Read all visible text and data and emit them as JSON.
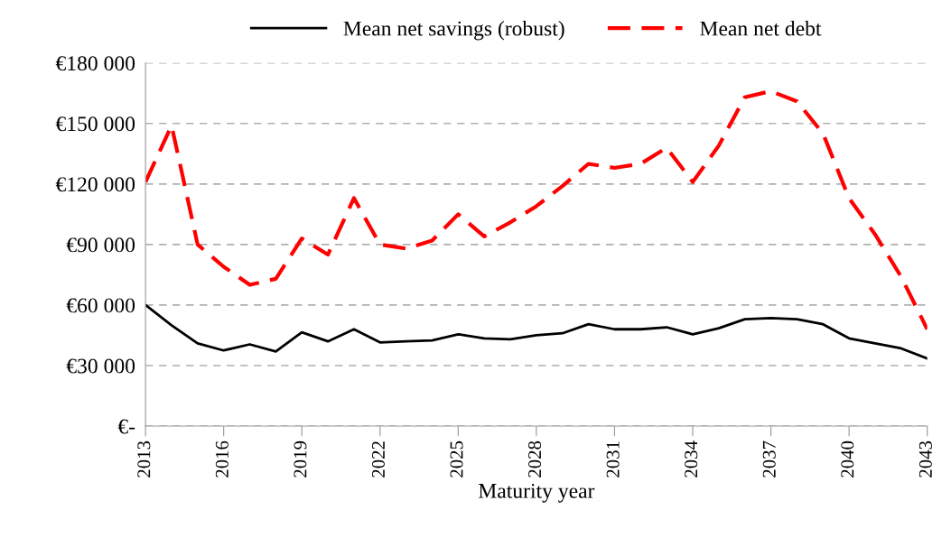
{
  "chart_data": {
    "type": "line",
    "xlabel": "Maturity year",
    "x": [
      2013,
      2014,
      2015,
      2016,
      2017,
      2018,
      2019,
      2020,
      2021,
      2022,
      2023,
      2024,
      2025,
      2026,
      2027,
      2028,
      2029,
      2030,
      2031,
      2032,
      2033,
      2034,
      2035,
      2036,
      2037,
      2038,
      2039,
      2040,
      2041,
      2042,
      2043
    ],
    "series": [
      {
        "name": "Mean net savings (robust)",
        "color": "#000000",
        "line_style": "solid",
        "values": [
          60000,
          50000,
          41000,
          37500,
          40500,
          37000,
          46500,
          42000,
          48000,
          41500,
          42000,
          42500,
          45500,
          43500,
          43000,
          45000,
          46000,
          50500,
          48000,
          48000,
          49000,
          45500,
          48500,
          53000,
          53500,
          53000,
          50500,
          43500,
          41000,
          38500,
          33500
        ]
      },
      {
        "name": "Mean net debt",
        "color": "#ff0000",
        "line_style": "dashed",
        "values": [
          121000,
          149000,
          90000,
          79000,
          70000,
          73000,
          93000,
          85000,
          113000,
          90000,
          88000,
          92000,
          105000,
          94000,
          101000,
          109000,
          119000,
          130000,
          128000,
          130000,
          138000,
          121000,
          139000,
          163000,
          166000,
          161000,
          145000,
          113000,
          95000,
          74000,
          48000
        ]
      }
    ],
    "xlim": [
      2013,
      2043
    ],
    "xticks": [
      2013,
      2016,
      2019,
      2022,
      2025,
      2028,
      2031,
      2034,
      2037,
      2040,
      2043
    ],
    "ylim": [
      0,
      180000
    ],
    "yticks": [
      {
        "value": 0,
        "label": "€-"
      },
      {
        "value": 30000,
        "label": "€30 000"
      },
      {
        "value": 60000,
        "label": "€60 000"
      },
      {
        "value": 90000,
        "label": "€90 000"
      },
      {
        "value": 120000,
        "label": "€120 000"
      },
      {
        "value": 150000,
        "label": "€150 000"
      },
      {
        "value": 180000,
        "label": "€180 000"
      }
    ],
    "grid": "y",
    "legend": "top",
    "marker": "none"
  }
}
